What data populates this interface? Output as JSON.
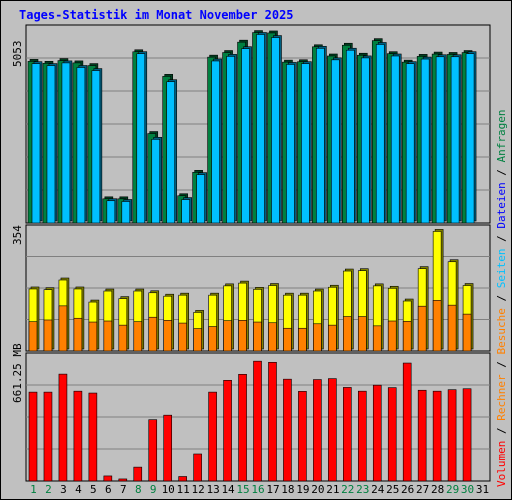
{
  "title": "Tages-Statistik im Monat November 2025",
  "colors": {
    "background": "#c0c0c0",
    "hits": "#008040",
    "files": "#00c0ff",
    "sites": "#ffff00",
    "visits": "#ff8000",
    "volume": "#ff0000",
    "weekday_label": "#000000",
    "weekend_label": "#008040",
    "title": "#0000ff"
  },
  "legend": {
    "items": [
      {
        "label": "Volumen",
        "color": "#ff0000"
      },
      {
        "label": "Rechner",
        "color": "#ff8000"
      },
      {
        "label": "Besuche",
        "color": "#ff8000"
      },
      {
        "label": "Seiten",
        "color": "#00c0ff"
      },
      {
        "label": "Dateien",
        "color": "#0000ff"
      },
      {
        "label": "Anfragen",
        "color": "#008040"
      }
    ],
    "separator": " / "
  },
  "chart_data": [
    {
      "type": "bar",
      "name": "Anfragen/Dateien",
      "ymax_label": "5053",
      "ylim": [
        0,
        5053
      ],
      "grid": true,
      "categories": [
        "1",
        "2",
        "3",
        "4",
        "5",
        "6",
        "7",
        "8",
        "9",
        "10",
        "11",
        "12",
        "13",
        "14",
        "15",
        "16",
        "17",
        "18",
        "19",
        "20",
        "21",
        "22",
        "23",
        "24",
        "25",
        "26",
        "27",
        "28",
        "29",
        "30",
        "31"
      ],
      "weekend": [
        1,
        2,
        8,
        9,
        15,
        16,
        22,
        23,
        29,
        30
      ],
      "series": [
        {
          "name": "Anfragen",
          "values": [
            4210,
            4160,
            4230,
            4170,
            4100,
            630,
            630,
            4460,
            2330,
            3820,
            710,
            1320,
            4320,
            4440,
            4710,
            4960,
            4950,
            4190,
            4200,
            4590,
            4350,
            4630,
            4370,
            4750,
            4410,
            4190,
            4340,
            4400,
            4390,
            4440,
            0
          ]
        },
        {
          "name": "Dateien",
          "values": [
            4150,
            4100,
            4170,
            4050,
            3970,
            580,
            560,
            4410,
            2180,
            3680,
            610,
            1260,
            4220,
            4340,
            4540,
            4910,
            4830,
            4130,
            4150,
            4550,
            4250,
            4500,
            4300,
            4650,
            4350,
            4150,
            4270,
            4330,
            4330,
            4410,
            0
          ]
        }
      ]
    },
    {
      "type": "bar",
      "name": "Seiten/Besuche",
      "ymax_label": "354",
      "ylim": [
        0,
        354
      ],
      "grid": true,
      "categories": [
        "1",
        "2",
        "3",
        "4",
        "5",
        "6",
        "7",
        "8",
        "9",
        "10",
        "11",
        "12",
        "13",
        "14",
        "15",
        "16",
        "17",
        "18",
        "19",
        "20",
        "21",
        "22",
        "23",
        "24",
        "25",
        "26",
        "27",
        "28",
        "29",
        "30",
        "31"
      ],
      "series": [
        {
          "name": "Seiten",
          "values": [
            180,
            178,
            206,
            180,
            142,
            174,
            152,
            174,
            169,
            159,
            162,
            112,
            162,
            189,
            197,
            179,
            190,
            162,
            162,
            174,
            185,
            232,
            233,
            189,
            182,
            145,
            239,
            347,
            259,
            190,
            0
          ]
        },
        {
          "name": "Besuche",
          "values": [
            85,
            90,
            131,
            95,
            84,
            87,
            75,
            85,
            98,
            89,
            81,
            65,
            71,
            88,
            89,
            84,
            82,
            66,
            66,
            79,
            75,
            100,
            100,
            73,
            87,
            86,
            130,
            147,
            133,
            107,
            0
          ]
        }
      ]
    },
    {
      "type": "bar",
      "name": "Volumen",
      "ymax_label": "661.25 MB",
      "ylim": [
        0,
        661.25
      ],
      "grid": true,
      "categories": [
        "1",
        "2",
        "3",
        "4",
        "5",
        "6",
        "7",
        "8",
        "9",
        "10",
        "11",
        "12",
        "13",
        "14",
        "15",
        "16",
        "17",
        "18",
        "19",
        "20",
        "21",
        "22",
        "23",
        "24",
        "25",
        "26",
        "27",
        "28",
        "29",
        "30",
        "31"
      ],
      "series": [
        {
          "name": "Volumen",
          "values": [
            474,
            474,
            570,
            479,
            469,
            27,
            11,
            74,
            327,
            351,
            24,
            144,
            474,
            537,
            569,
            639,
            633,
            543,
            478,
            541,
            546,
            499,
            479,
            511,
            498,
            629,
            484,
            479,
            487,
            492,
            0
          ]
        }
      ]
    }
  ]
}
